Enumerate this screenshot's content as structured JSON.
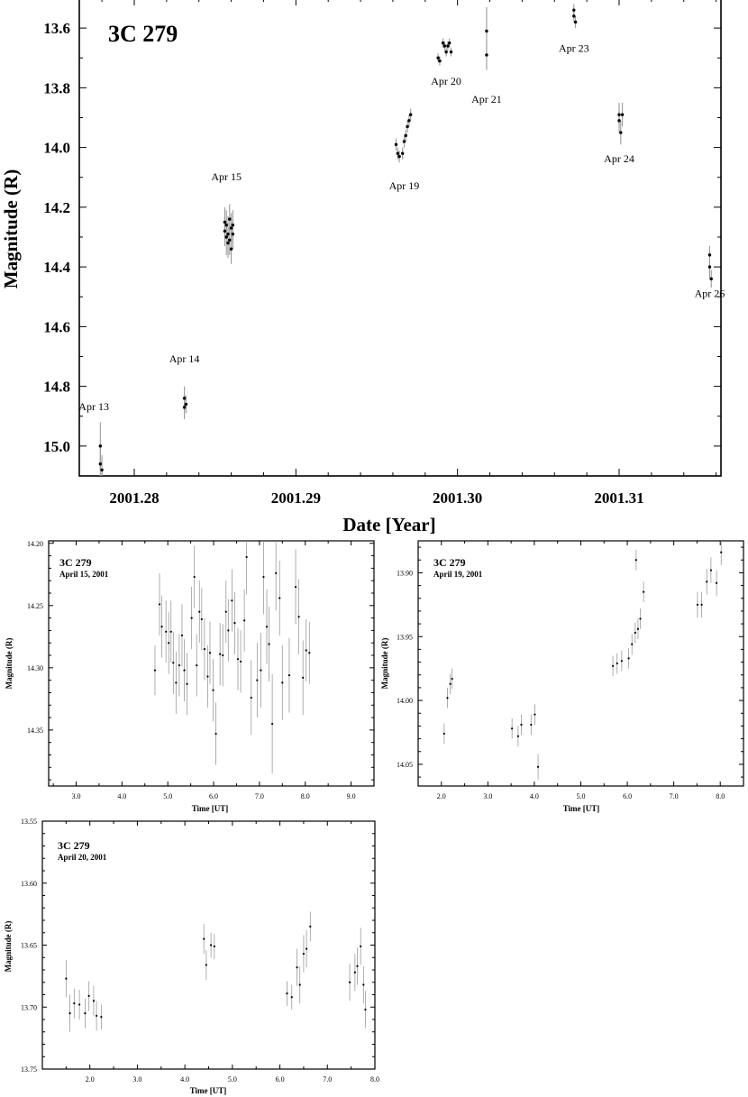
{
  "chart_data": [
    {
      "id": "main",
      "type": "scatter",
      "object": "3C 279",
      "xlabel": "Date [Year]",
      "ylabel": "Magnitude (R)",
      "xlim": [
        2001.2766,
        2001.3163
      ],
      "ylim": [
        15.1,
        13.5
      ],
      "y_inverted": true,
      "xticks": [
        2001.28,
        2001.29,
        2001.3,
        2001.31
      ],
      "xtick_labels": [
        "2001.28",
        "2001.29",
        "2001.30",
        "2001.31"
      ],
      "yticks": [
        13.6,
        13.8,
        14.0,
        14.2,
        14.4,
        14.6,
        14.8,
        15.0
      ],
      "ytick_labels": [
        "13.6",
        "13.8",
        "14.0",
        "14.2",
        "14.4",
        "14.6",
        "14.8",
        "15.0"
      ],
      "annotations": [
        {
          "label": "Apr 13",
          "x": 2001.2775,
          "y": 14.88
        },
        {
          "label": "Apr 14",
          "x": 2001.2831,
          "y": 14.72
        },
        {
          "label": "Apr 15",
          "x": 2001.2857,
          "y": 14.11
        },
        {
          "label": "Apr 19",
          "x": 2001.2967,
          "y": 14.14
        },
        {
          "label": "Apr 20",
          "x": 2001.2993,
          "y": 13.79
        },
        {
          "label": "Apr 21",
          "x": 2001.3018,
          "y": 13.85
        },
        {
          "label": "Apr 23",
          "x": 2001.3072,
          "y": 13.68
        },
        {
          "label": "Apr 24",
          "x": 2001.31,
          "y": 14.05
        },
        {
          "label": "Apr 26",
          "x": 2001.3156,
          "y": 14.5
        }
      ],
      "points": [
        {
          "x": 2001.2779,
          "y": 15.0,
          "err": 0.08
        },
        {
          "x": 2001.2779,
          "y": 15.06,
          "err": 0.06
        },
        {
          "x": 2001.278,
          "y": 15.08,
          "err": 0.05
        },
        {
          "x": 2001.2831,
          "y": 14.84,
          "err": 0.04
        },
        {
          "x": 2001.2831,
          "y": 14.87,
          "err": 0.04
        },
        {
          "x": 2001.2832,
          "y": 14.86,
          "err": 0.03
        },
        {
          "x": 2001.2856,
          "y": 14.25,
          "err": 0.05
        },
        {
          "x": 2001.2856,
          "y": 14.28,
          "err": 0.05
        },
        {
          "x": 2001.2857,
          "y": 14.3,
          "err": 0.06
        },
        {
          "x": 2001.2857,
          "y": 14.26,
          "err": 0.05
        },
        {
          "x": 2001.2858,
          "y": 14.32,
          "err": 0.05
        },
        {
          "x": 2001.2858,
          "y": 14.29,
          "err": 0.06
        },
        {
          "x": 2001.2859,
          "y": 14.24,
          "err": 0.05
        },
        {
          "x": 2001.2859,
          "y": 14.31,
          "err": 0.05
        },
        {
          "x": 2001.286,
          "y": 14.27,
          "err": 0.05
        },
        {
          "x": 2001.286,
          "y": 14.34,
          "err": 0.05
        },
        {
          "x": 2001.2861,
          "y": 14.29,
          "err": 0.05
        },
        {
          "x": 2001.2861,
          "y": 14.26,
          "err": 0.05
        },
        {
          "x": 2001.2962,
          "y": 13.99,
          "err": 0.02
        },
        {
          "x": 2001.2963,
          "y": 14.02,
          "err": 0.02
        },
        {
          "x": 2001.2964,
          "y": 14.03,
          "err": 0.02
        },
        {
          "x": 2001.2966,
          "y": 14.02,
          "err": 0.02
        },
        {
          "x": 2001.2967,
          "y": 13.98,
          "err": 0.02
        },
        {
          "x": 2001.2968,
          "y": 13.96,
          "err": 0.02
        },
        {
          "x": 2001.2969,
          "y": 13.93,
          "err": 0.02
        },
        {
          "x": 2001.297,
          "y": 13.91,
          "err": 0.02
        },
        {
          "x": 2001.2971,
          "y": 13.89,
          "err": 0.02
        },
        {
          "x": 2001.2988,
          "y": 13.7,
          "err": 0.015
        },
        {
          "x": 2001.2989,
          "y": 13.71,
          "err": 0.015
        },
        {
          "x": 2001.2991,
          "y": 13.65,
          "err": 0.015
        },
        {
          "x": 2001.2992,
          "y": 13.66,
          "err": 0.015
        },
        {
          "x": 2001.2993,
          "y": 13.68,
          "err": 0.015
        },
        {
          "x": 2001.2994,
          "y": 13.66,
          "err": 0.015
        },
        {
          "x": 2001.2995,
          "y": 13.65,
          "err": 0.015
        },
        {
          "x": 2001.2996,
          "y": 13.68,
          "err": 0.015
        },
        {
          "x": 2001.3018,
          "y": 13.61,
          "err": 0.08
        },
        {
          "x": 2001.3018,
          "y": 13.69,
          "err": 0.05
        },
        {
          "x": 2001.3072,
          "y": 13.54,
          "err": 0.02
        },
        {
          "x": 2001.3072,
          "y": 13.56,
          "err": 0.02
        },
        {
          "x": 2001.3073,
          "y": 13.58,
          "err": 0.02
        },
        {
          "x": 2001.31,
          "y": 13.89,
          "err": 0.04
        },
        {
          "x": 2001.31,
          "y": 13.91,
          "err": 0.04
        },
        {
          "x": 2001.3101,
          "y": 13.95,
          "err": 0.04
        },
        {
          "x": 2001.3102,
          "y": 13.89,
          "err": 0.04
        },
        {
          "x": 2001.3156,
          "y": 14.36,
          "err": 0.03
        },
        {
          "x": 2001.3156,
          "y": 14.4,
          "err": 0.04
        },
        {
          "x": 2001.3157,
          "y": 14.44,
          "err": 0.03
        }
      ]
    },
    {
      "id": "apr15",
      "type": "scatter",
      "object": "3C 279",
      "date_label": "April 15, 2001",
      "xlabel": "Time [UT]",
      "ylabel": "Magnitude (R)",
      "xlim": [
        2.4,
        9.5
      ],
      "ylim": [
        14.395,
        14.198
      ],
      "y_inverted": true,
      "xticks": [
        3,
        4,
        5,
        6,
        7,
        8,
        9
      ],
      "xtick_labels": [
        "3.0",
        "4.0",
        "5.0",
        "6.0",
        "7.0",
        "8.0",
        "9.0"
      ],
      "yticks": [
        14.2,
        14.25,
        14.3,
        14.35
      ],
      "ytick_labels": [
        "14.20",
        "14.25",
        "14.30",
        "14.35"
      ],
      "points": [
        {
          "x": 4.72,
          "y": 14.302,
          "err": 0.02
        },
        {
          "x": 4.82,
          "y": 14.249,
          "err": 0.025
        },
        {
          "x": 4.87,
          "y": 14.267,
          "err": 0.025
        },
        {
          "x": 4.96,
          "y": 14.271,
          "err": 0.025
        },
        {
          "x": 5.02,
          "y": 14.28,
          "err": 0.025
        },
        {
          "x": 5.07,
          "y": 14.271,
          "err": 0.025
        },
        {
          "x": 5.12,
          "y": 14.296,
          "err": 0.025
        },
        {
          "x": 5.18,
          "y": 14.312,
          "err": 0.025
        },
        {
          "x": 5.25,
          "y": 14.298,
          "err": 0.025
        },
        {
          "x": 5.31,
          "y": 14.274,
          "err": 0.025
        },
        {
          "x": 5.36,
          "y": 14.302,
          "err": 0.025
        },
        {
          "x": 5.42,
          "y": 14.313,
          "err": 0.025
        },
        {
          "x": 5.52,
          "y": 14.26,
          "err": 0.025
        },
        {
          "x": 5.58,
          "y": 14.227,
          "err": 0.025
        },
        {
          "x": 5.63,
          "y": 14.298,
          "err": 0.025
        },
        {
          "x": 5.69,
          "y": 14.255,
          "err": 0.025
        },
        {
          "x": 5.74,
          "y": 14.261,
          "err": 0.025
        },
        {
          "x": 5.8,
          "y": 14.285,
          "err": 0.025
        },
        {
          "x": 5.87,
          "y": 14.307,
          "err": 0.025
        },
        {
          "x": 5.92,
          "y": 14.288,
          "err": 0.025
        },
        {
          "x": 5.99,
          "y": 14.318,
          "err": 0.025
        },
        {
          "x": 6.05,
          "y": 14.353,
          "err": 0.025
        },
        {
          "x": 6.14,
          "y": 14.289,
          "err": 0.025
        },
        {
          "x": 6.2,
          "y": 14.29,
          "err": 0.025
        },
        {
          "x": 6.27,
          "y": 14.255,
          "err": 0.025
        },
        {
          "x": 6.32,
          "y": 14.27,
          "err": 0.025
        },
        {
          "x": 6.4,
          "y": 14.246,
          "err": 0.025
        },
        {
          "x": 6.46,
          "y": 14.264,
          "err": 0.025
        },
        {
          "x": 6.53,
          "y": 14.293,
          "err": 0.025
        },
        {
          "x": 6.59,
          "y": 14.295,
          "err": 0.025
        },
        {
          "x": 6.67,
          "y": 14.262,
          "err": 0.025
        },
        {
          "x": 6.72,
          "y": 14.211,
          "err": 0.03
        },
        {
          "x": 6.82,
          "y": 14.324,
          "err": 0.03
        },
        {
          "x": 6.95,
          "y": 14.31,
          "err": 0.03
        },
        {
          "x": 7.03,
          "y": 14.302,
          "err": 0.03
        },
        {
          "x": 7.09,
          "y": 14.227,
          "err": 0.03
        },
        {
          "x": 7.16,
          "y": 14.267,
          "err": 0.03
        },
        {
          "x": 7.21,
          "y": 14.281,
          "err": 0.03
        },
        {
          "x": 7.28,
          "y": 14.345,
          "err": 0.04
        },
        {
          "x": 7.36,
          "y": 14.224,
          "err": 0.03
        },
        {
          "x": 7.44,
          "y": 14.244,
          "err": 0.03
        },
        {
          "x": 7.5,
          "y": 14.312,
          "err": 0.03
        },
        {
          "x": 7.65,
          "y": 14.306,
          "err": 0.03
        },
        {
          "x": 7.79,
          "y": 14.235,
          "err": 0.03
        },
        {
          "x": 7.86,
          "y": 14.259,
          "err": 0.03
        },
        {
          "x": 7.95,
          "y": 14.308,
          "err": 0.03
        },
        {
          "x": 8.02,
          "y": 14.286,
          "err": 0.025
        },
        {
          "x": 8.09,
          "y": 14.288,
          "err": 0.025
        }
      ]
    },
    {
      "id": "apr19",
      "type": "scatter",
      "object": "3C 279",
      "date_label": "April 19, 2001",
      "xlabel": "Time [UT]",
      "ylabel": "Magnitude (R)",
      "xlim": [
        1.5,
        8.5
      ],
      "ylim": [
        14.067,
        13.875
      ],
      "y_inverted": true,
      "xticks": [
        2,
        3,
        4,
        5,
        6,
        7,
        8
      ],
      "xtick_labels": [
        "2.0",
        "3.0",
        "4.0",
        "5.0",
        "6.0",
        "7.0",
        "8.0"
      ],
      "yticks": [
        13.9,
        13.95,
        14.0,
        14.05
      ],
      "ytick_labels": [
        "13.90",
        "13.95",
        "14.00",
        "14.05"
      ],
      "points": [
        {
          "x": 2.06,
          "y": 14.026,
          "err": 0.008
        },
        {
          "x": 2.13,
          "y": 13.998,
          "err": 0.008
        },
        {
          "x": 2.19,
          "y": 13.987,
          "err": 0.008
        },
        {
          "x": 2.23,
          "y": 13.983,
          "err": 0.008
        },
        {
          "x": 3.52,
          "y": 14.022,
          "err": 0.008
        },
        {
          "x": 3.65,
          "y": 14.028,
          "err": 0.008
        },
        {
          "x": 3.72,
          "y": 14.019,
          "err": 0.008
        },
        {
          "x": 3.93,
          "y": 14.019,
          "err": 0.008
        },
        {
          "x": 4.01,
          "y": 14.011,
          "err": 0.008
        },
        {
          "x": 4.08,
          "y": 14.052,
          "err": 0.01
        },
        {
          "x": 5.69,
          "y": 13.973,
          "err": 0.008
        },
        {
          "x": 5.78,
          "y": 13.971,
          "err": 0.008
        },
        {
          "x": 5.88,
          "y": 13.969,
          "err": 0.008
        },
        {
          "x": 6.03,
          "y": 13.967,
          "err": 0.008
        },
        {
          "x": 6.1,
          "y": 13.956,
          "err": 0.008
        },
        {
          "x": 6.17,
          "y": 13.947,
          "err": 0.008
        },
        {
          "x": 6.23,
          "y": 13.944,
          "err": 0.008
        },
        {
          "x": 6.28,
          "y": 13.936,
          "err": 0.008
        },
        {
          "x": 6.19,
          "y": 13.89,
          "err": 0.008
        },
        {
          "x": 6.35,
          "y": 13.915,
          "err": 0.008
        },
        {
          "x": 7.51,
          "y": 13.925,
          "err": 0.01
        },
        {
          "x": 7.6,
          "y": 13.925,
          "err": 0.01
        },
        {
          "x": 7.71,
          "y": 13.907,
          "err": 0.01
        },
        {
          "x": 7.8,
          "y": 13.898,
          "err": 0.01
        },
        {
          "x": 7.92,
          "y": 13.908,
          "err": 0.01
        },
        {
          "x": 8.02,
          "y": 13.884,
          "err": 0.01
        }
      ]
    },
    {
      "id": "apr20",
      "type": "scatter",
      "object": "3C 279",
      "date_label": "April 20, 2001",
      "xlabel": "Time [UT]",
      "ylabel": "Magnitude (R)",
      "xlim": [
        1.0,
        8.0
      ],
      "ylim": [
        13.75,
        13.55
      ],
      "y_inverted": true,
      "xticks": [
        2,
        3,
        4,
        5,
        6,
        7,
        8
      ],
      "xtick_labels": [
        "2.0",
        "3.0",
        "4.0",
        "5.0",
        "6.0",
        "7.0",
        "8.0"
      ],
      "yticks": [
        13.55,
        13.6,
        13.65,
        13.7,
        13.75
      ],
      "ytick_labels": [
        "13.55",
        "13.60",
        "13.65",
        "13.70",
        "13.75"
      ],
      "points": [
        {
          "x": 1.5,
          "y": 13.677,
          "err": 0.015
        },
        {
          "x": 1.58,
          "y": 13.705,
          "err": 0.015
        },
        {
          "x": 1.67,
          "y": 13.697,
          "err": 0.012
        },
        {
          "x": 1.78,
          "y": 13.698,
          "err": 0.012
        },
        {
          "x": 1.9,
          "y": 13.705,
          "err": 0.012
        },
        {
          "x": 1.98,
          "y": 13.691,
          "err": 0.012
        },
        {
          "x": 2.08,
          "y": 13.695,
          "err": 0.012
        },
        {
          "x": 2.14,
          "y": 13.707,
          "err": 0.012
        },
        {
          "x": 2.24,
          "y": 13.708,
          "err": 0.01
        },
        {
          "x": 4.4,
          "y": 13.645,
          "err": 0.012
        },
        {
          "x": 4.45,
          "y": 13.666,
          "err": 0.012
        },
        {
          "x": 4.55,
          "y": 13.65,
          "err": 0.01
        },
        {
          "x": 4.62,
          "y": 13.651,
          "err": 0.01
        },
        {
          "x": 6.15,
          "y": 13.689,
          "err": 0.01
        },
        {
          "x": 6.25,
          "y": 13.692,
          "err": 0.01
        },
        {
          "x": 6.36,
          "y": 13.668,
          "err": 0.015
        },
        {
          "x": 6.42,
          "y": 13.682,
          "err": 0.015
        },
        {
          "x": 6.5,
          "y": 13.657,
          "err": 0.015
        },
        {
          "x": 6.56,
          "y": 13.653,
          "err": 0.015
        },
        {
          "x": 6.64,
          "y": 13.635,
          "err": 0.012
        },
        {
          "x": 7.47,
          "y": 13.68,
          "err": 0.015
        },
        {
          "x": 7.58,
          "y": 13.672,
          "err": 0.015
        },
        {
          "x": 7.63,
          "y": 13.667,
          "err": 0.015
        },
        {
          "x": 7.7,
          "y": 13.651,
          "err": 0.015
        },
        {
          "x": 7.76,
          "y": 13.682,
          "err": 0.015
        },
        {
          "x": 7.8,
          "y": 13.702,
          "err": 0.015
        }
      ]
    }
  ]
}
